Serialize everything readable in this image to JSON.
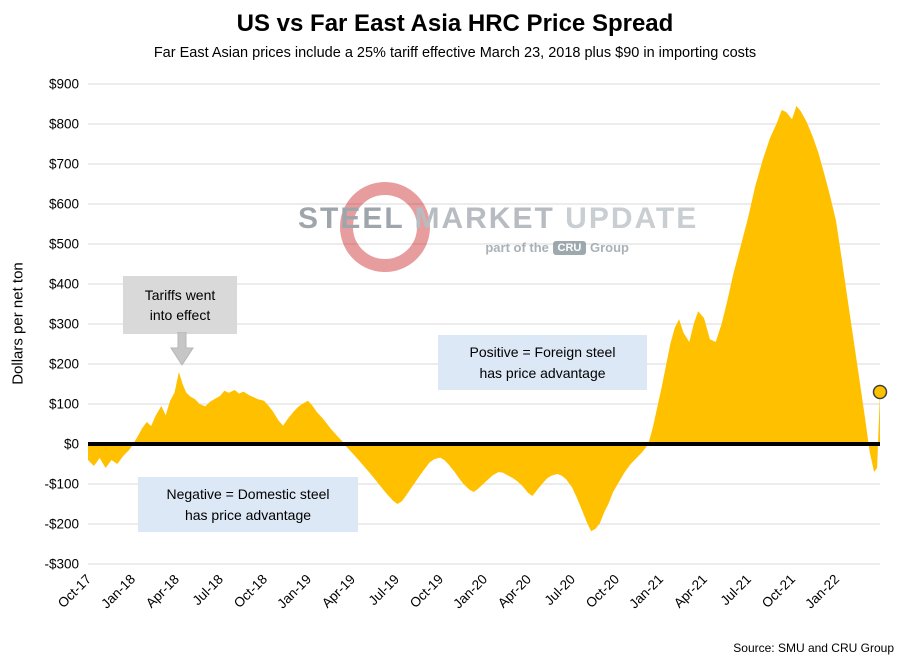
{
  "title": "US vs Far East Asia HRC Price Spread",
  "subtitle": "Far East Asian prices include a 25% tariff effective March 23, 2018 plus $90 in importing costs",
  "y_axis_label": "Dollars per net ton",
  "source": "Source: SMU and CRU Group",
  "annotations": {
    "tariffs": "Tariffs went\ninto effect",
    "positive": "Positive = Foreign steel\nhas price advantage",
    "negative": "Negative = Domestic steel\nhas price advantage"
  },
  "watermark": {
    "steel": "STEEL",
    "market": "MARKET",
    "update": "UPDATE",
    "tagline_prefix": "part of the",
    "cru": "CRU",
    "group": "Group"
  },
  "colors": {
    "area": "#FFC000",
    "zero_line": "#000000",
    "grid": "#D9D9D9",
    "annotation_gray": "#D9D9D9",
    "annotation_blue": "#DCE8F5",
    "watermark_red": "#C00000",
    "marker_stroke": "#404040"
  },
  "chart_data": {
    "type": "area",
    "title": "US vs Far East Asia HRC Price Spread",
    "ylabel": "Dollars per net ton",
    "ylim": [
      -300,
      900
    ],
    "baseline": 0,
    "grid": true,
    "x_unit": "months since Oct-2017 (values estimated from plot)",
    "y_tick_values": [
      900,
      800,
      700,
      600,
      500,
      400,
      300,
      200,
      100,
      0,
      -100,
      -200,
      -300
    ],
    "y_tick_labels": [
      "$900",
      "$800",
      "$700",
      "$600",
      "$500",
      "$400",
      "$300",
      "$200",
      "$100",
      "$0",
      "-$100",
      "-$200",
      "-$300"
    ],
    "x_tick_labels": [
      "Oct-17",
      "Jan-18",
      "Apr-18",
      "Jul-18",
      "Oct-18",
      "Jan-19",
      "Apr-19",
      "Jul-19",
      "Oct-19",
      "Jan-20",
      "Apr-20",
      "Jul-20",
      "Oct-20",
      "Jan-21",
      "Apr-21",
      "Jul-21",
      "Oct-21",
      "Jan-22"
    ],
    "x_tick_months": [
      0,
      3,
      6,
      9,
      12,
      15,
      18,
      21,
      24,
      27,
      30,
      33,
      36,
      39,
      42,
      45,
      48,
      51
    ],
    "points": [
      [
        0,
        -40
      ],
      [
        0.4,
        -55
      ],
      [
        0.8,
        -35
      ],
      [
        1.2,
        -60
      ],
      [
        1.6,
        -40
      ],
      [
        2,
        -50
      ],
      [
        2.4,
        -30
      ],
      [
        2.8,
        -15
      ],
      [
        3,
        -5
      ],
      [
        3.4,
        20
      ],
      [
        3.7,
        40
      ],
      [
        4,
        55
      ],
      [
        4.3,
        45
      ],
      [
        4.6,
        70
      ],
      [
        5,
        95
      ],
      [
        5.3,
        72
      ],
      [
        5.6,
        108
      ],
      [
        5.9,
        128
      ],
      [
        6.2,
        180
      ],
      [
        6.45,
        150
      ],
      [
        6.7,
        128
      ],
      [
        7,
        118
      ],
      [
        7.3,
        112
      ],
      [
        7.6,
        100
      ],
      [
        8,
        94
      ],
      [
        8.3,
        105
      ],
      [
        8.6,
        112
      ],
      [
        9,
        120
      ],
      [
        9.3,
        133
      ],
      [
        9.6,
        128
      ],
      [
        10,
        135
      ],
      [
        10.3,
        126
      ],
      [
        10.6,
        131
      ],
      [
        11,
        122
      ],
      [
        11.3,
        117
      ],
      [
        11.6,
        112
      ],
      [
        12,
        108
      ],
      [
        12.3,
        96
      ],
      [
        12.6,
        82
      ],
      [
        13,
        58
      ],
      [
        13.3,
        46
      ],
      [
        13.6,
        62
      ],
      [
        14,
        80
      ],
      [
        14.3,
        92
      ],
      [
        14.6,
        100
      ],
      [
        15,
        108
      ],
      [
        15.3,
        96
      ],
      [
        15.6,
        80
      ],
      [
        16,
        64
      ],
      [
        16.3,
        50
      ],
      [
        16.6,
        36
      ],
      [
        17,
        20
      ],
      [
        17.3,
        8
      ],
      [
        17.6,
        -6
      ],
      [
        18,
        -22
      ],
      [
        18.4,
        -38
      ],
      [
        18.8,
        -55
      ],
      [
        19.2,
        -72
      ],
      [
        19.6,
        -90
      ],
      [
        20,
        -108
      ],
      [
        20.4,
        -126
      ],
      [
        20.8,
        -142
      ],
      [
        21.1,
        -150
      ],
      [
        21.4,
        -143
      ],
      [
        21.7,
        -128
      ],
      [
        22,
        -112
      ],
      [
        22.3,
        -96
      ],
      [
        22.6,
        -80
      ],
      [
        23,
        -60
      ],
      [
        23.3,
        -46
      ],
      [
        23.6,
        -38
      ],
      [
        24,
        -34
      ],
      [
        24.3,
        -40
      ],
      [
        24.6,
        -52
      ],
      [
        25,
        -70
      ],
      [
        25.3,
        -86
      ],
      [
        25.6,
        -100
      ],
      [
        26,
        -114
      ],
      [
        26.3,
        -120
      ],
      [
        26.6,
        -112
      ],
      [
        27,
        -98
      ],
      [
        27.3,
        -88
      ],
      [
        27.6,
        -78
      ],
      [
        28,
        -70
      ],
      [
        28.3,
        -72
      ],
      [
        28.6,
        -78
      ],
      [
        29,
        -86
      ],
      [
        29.3,
        -94
      ],
      [
        29.6,
        -104
      ],
      [
        30,
        -122
      ],
      [
        30.3,
        -130
      ],
      [
        30.6,
        -116
      ],
      [
        31,
        -98
      ],
      [
        31.3,
        -86
      ],
      [
        31.6,
        -79
      ],
      [
        32,
        -75
      ],
      [
        32.3,
        -79
      ],
      [
        32.6,
        -88
      ],
      [
        33,
        -108
      ],
      [
        33.3,
        -132
      ],
      [
        33.6,
        -158
      ],
      [
        34,
        -195
      ],
      [
        34.3,
        -218
      ],
      [
        34.6,
        -212
      ],
      [
        34.9,
        -198
      ],
      [
        35.2,
        -170
      ],
      [
        35.5,
        -148
      ],
      [
        35.8,
        -120
      ],
      [
        36.2,
        -95
      ],
      [
        36.6,
        -70
      ],
      [
        37,
        -50
      ],
      [
        37.4,
        -35
      ],
      [
        37.8,
        -20
      ],
      [
        38.2,
        0
      ],
      [
        38.5,
        40
      ],
      [
        38.8,
        90
      ],
      [
        39.1,
        140
      ],
      [
        39.4,
        195
      ],
      [
        39.7,
        250
      ],
      [
        40,
        290
      ],
      [
        40.3,
        312
      ],
      [
        40.6,
        278
      ],
      [
        41,
        255
      ],
      [
        41.3,
        300
      ],
      [
        41.6,
        332
      ],
      [
        42,
        315
      ],
      [
        42.4,
        262
      ],
      [
        42.8,
        255
      ],
      [
        43.2,
        300
      ],
      [
        43.6,
        360
      ],
      [
        44,
        425
      ],
      [
        44.5,
        495
      ],
      [
        45,
        565
      ],
      [
        45.5,
        645
      ],
      [
        46,
        710
      ],
      [
        46.5,
        765
      ],
      [
        47,
        805
      ],
      [
        47.3,
        835
      ],
      [
        47.6,
        830
      ],
      [
        48,
        812
      ],
      [
        48.3,
        845
      ],
      [
        48.6,
        832
      ],
      [
        49,
        805
      ],
      [
        49.4,
        770
      ],
      [
        49.8,
        728
      ],
      [
        50.2,
        675
      ],
      [
        50.6,
        620
      ],
      [
        51,
        558
      ],
      [
        51.4,
        460
      ],
      [
        51.8,
        360
      ],
      [
        52.2,
        260
      ],
      [
        52.6,
        160
      ],
      [
        53,
        60
      ],
      [
        53.3,
        -20
      ],
      [
        53.6,
        -70
      ],
      [
        53.8,
        -60
      ],
      [
        54,
        130
      ]
    ],
    "end_marker": {
      "m": 54,
      "value": 130
    }
  }
}
